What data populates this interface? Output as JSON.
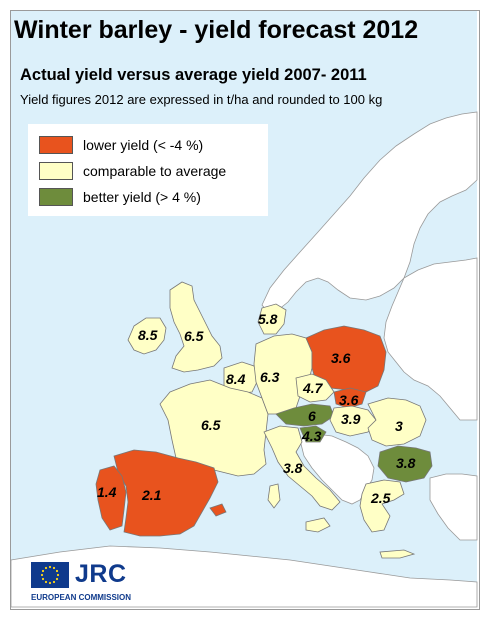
{
  "title": "Winter barley - yield forecast 2012",
  "subtitle": "Actual yield versus average yield 2007- 2011",
  "note": "Yield figures 2012 are expressed in t/ha and rounded to 100 kg",
  "colors": {
    "lower": "#e8531e",
    "comparable": "#ffffc6",
    "better": "#6e8c3c",
    "sea": "#dcf0fa",
    "land_other": "#ffffff",
    "border": "#888888",
    "brand": "#0f3a8c"
  },
  "legend": {
    "items": [
      {
        "label": "lower yield (< -4 %)",
        "category": "lower"
      },
      {
        "label": "comparable to average",
        "category": "comparable"
      },
      {
        "label": "better yield (> 4 %)",
        "category": "better"
      }
    ]
  },
  "regions": [
    {
      "country": "Ireland",
      "value": "8.5",
      "category": "comparable"
    },
    {
      "country": "United Kingdom",
      "value": "6.5",
      "category": "comparable"
    },
    {
      "country": "Denmark",
      "value": "5.8",
      "category": "comparable"
    },
    {
      "country": "Poland",
      "value": "3.6",
      "category": "lower"
    },
    {
      "country": "Benelux",
      "value": "8.4",
      "category": "comparable"
    },
    {
      "country": "Germany",
      "value": "6.3",
      "category": "comparable"
    },
    {
      "country": "Czech Republic",
      "value": "4.7",
      "category": "comparable"
    },
    {
      "country": "Slovakia",
      "value": "3.6",
      "category": "lower"
    },
    {
      "country": "France",
      "value": "6.5",
      "category": "comparable"
    },
    {
      "country": "Austria",
      "value": "6",
      "category": "better"
    },
    {
      "country": "Hungary",
      "value": "3.9",
      "category": "comparable"
    },
    {
      "country": "Slovenia",
      "value": "4.3",
      "category": "better"
    },
    {
      "country": "Romania",
      "value": "3",
      "category": "comparable"
    },
    {
      "country": "Italy",
      "value": "3.8",
      "category": "comparable"
    },
    {
      "country": "Bulgaria",
      "value": "3.8",
      "category": "better"
    },
    {
      "country": "Portugal",
      "value": "1.4",
      "category": "lower"
    },
    {
      "country": "Spain",
      "value": "2.1",
      "category": "lower"
    },
    {
      "country": "Greece",
      "value": "2.5",
      "category": "comparable"
    }
  ],
  "logo": {
    "name": "JRC",
    "org": "EUROPEAN COMMISSION"
  }
}
